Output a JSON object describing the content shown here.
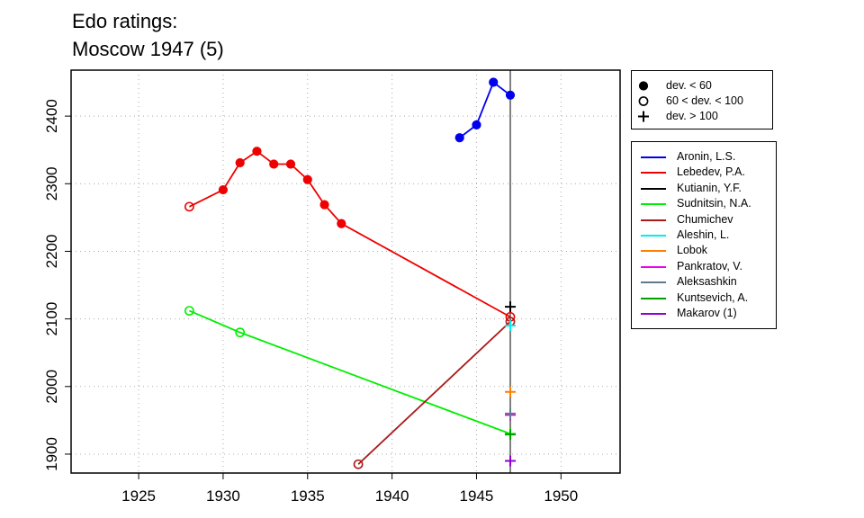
{
  "chart_data": {
    "type": "line",
    "title": [
      "Edo ratings:",
      "Moscow 1947 (5)"
    ],
    "xlabel": "",
    "ylabel": "",
    "xlim": [
      1921,
      1953.5
    ],
    "ylim": [
      1872,
      2468
    ],
    "x_ticks": [
      "1925",
      "1930",
      "1935",
      "1940",
      "1945",
      "1950"
    ],
    "y_ticks": [
      "1900",
      "2000",
      "2100",
      "2200",
      "2300",
      "2400"
    ],
    "x_tick_values": [
      1925,
      1930,
      1935,
      1940,
      1945,
      1950
    ],
    "y_tick_values": [
      1900,
      2000,
      2100,
      2200,
      2300,
      2400
    ],
    "grid": true,
    "reference_line_x": 1947,
    "symbol_legend": [
      {
        "marker": "filled",
        "label": "dev. < 60"
      },
      {
        "marker": "open",
        "label": "60 < dev. < 100"
      },
      {
        "marker": "plus",
        "label": "dev. > 100"
      }
    ],
    "series": [
      {
        "name": "Aronin, L.S.",
        "color": "#0000ee",
        "points": [
          [
            1944,
            2368,
            "filled"
          ],
          [
            1945,
            2387,
            "filled"
          ],
          [
            1946,
            2450,
            "filled"
          ],
          [
            1947,
            2431,
            "filled"
          ]
        ]
      },
      {
        "name": "Lebedev, P.A.",
        "color": "#ee0000",
        "points": [
          [
            1928,
            2266,
            "open"
          ],
          [
            1930,
            2291,
            "filled"
          ],
          [
            1931,
            2331,
            "filled"
          ],
          [
            1932,
            2348,
            "filled"
          ],
          [
            1933,
            2329,
            "filled"
          ],
          [
            1934,
            2329,
            "filled"
          ],
          [
            1935,
            2306,
            "filled"
          ],
          [
            1936,
            2269,
            "filled"
          ],
          [
            1937,
            2241,
            "filled"
          ],
          [
            1947,
            2103,
            "open"
          ]
        ]
      },
      {
        "name": "Kutianin, Y.F.",
        "color": "#000000",
        "points": [
          [
            1947,
            2118,
            "plus"
          ]
        ]
      },
      {
        "name": "Sudnitsin, N.A.",
        "color": "#00ee00",
        "points": [
          [
            1928,
            2112,
            "open"
          ],
          [
            1931,
            2080,
            "open"
          ],
          [
            1947,
            1930,
            "plus"
          ]
        ]
      },
      {
        "name": "Chumichev",
        "color": "#aa1a1a",
        "points": [
          [
            1938,
            1885,
            "open"
          ],
          [
            1947,
            2096,
            "open"
          ]
        ]
      },
      {
        "name": "Aleshin, L.",
        "color": "#00eeee",
        "points": [
          [
            1947,
            2090,
            "plus"
          ]
        ]
      },
      {
        "name": "Lobok",
        "color": "#ff7f00",
        "points": [
          [
            1947,
            1992,
            "plus"
          ]
        ]
      },
      {
        "name": "Pankratov, V.",
        "color": "#ee00ee",
        "points": [
          [
            1947,
            1958,
            "plus"
          ]
        ]
      },
      {
        "name": "Aleksashkin",
        "color": "#607b8b",
        "points": [
          [
            1947,
            1960,
            "plus"
          ]
        ]
      },
      {
        "name": "Kuntsevich, A.",
        "color": "#00a000",
        "points": [
          [
            1947,
            1929,
            "plus"
          ]
        ]
      },
      {
        "name": "Makarov (1)",
        "color": "#9400d3",
        "points": [
          [
            1947,
            1890,
            "plus"
          ]
        ]
      }
    ]
  }
}
